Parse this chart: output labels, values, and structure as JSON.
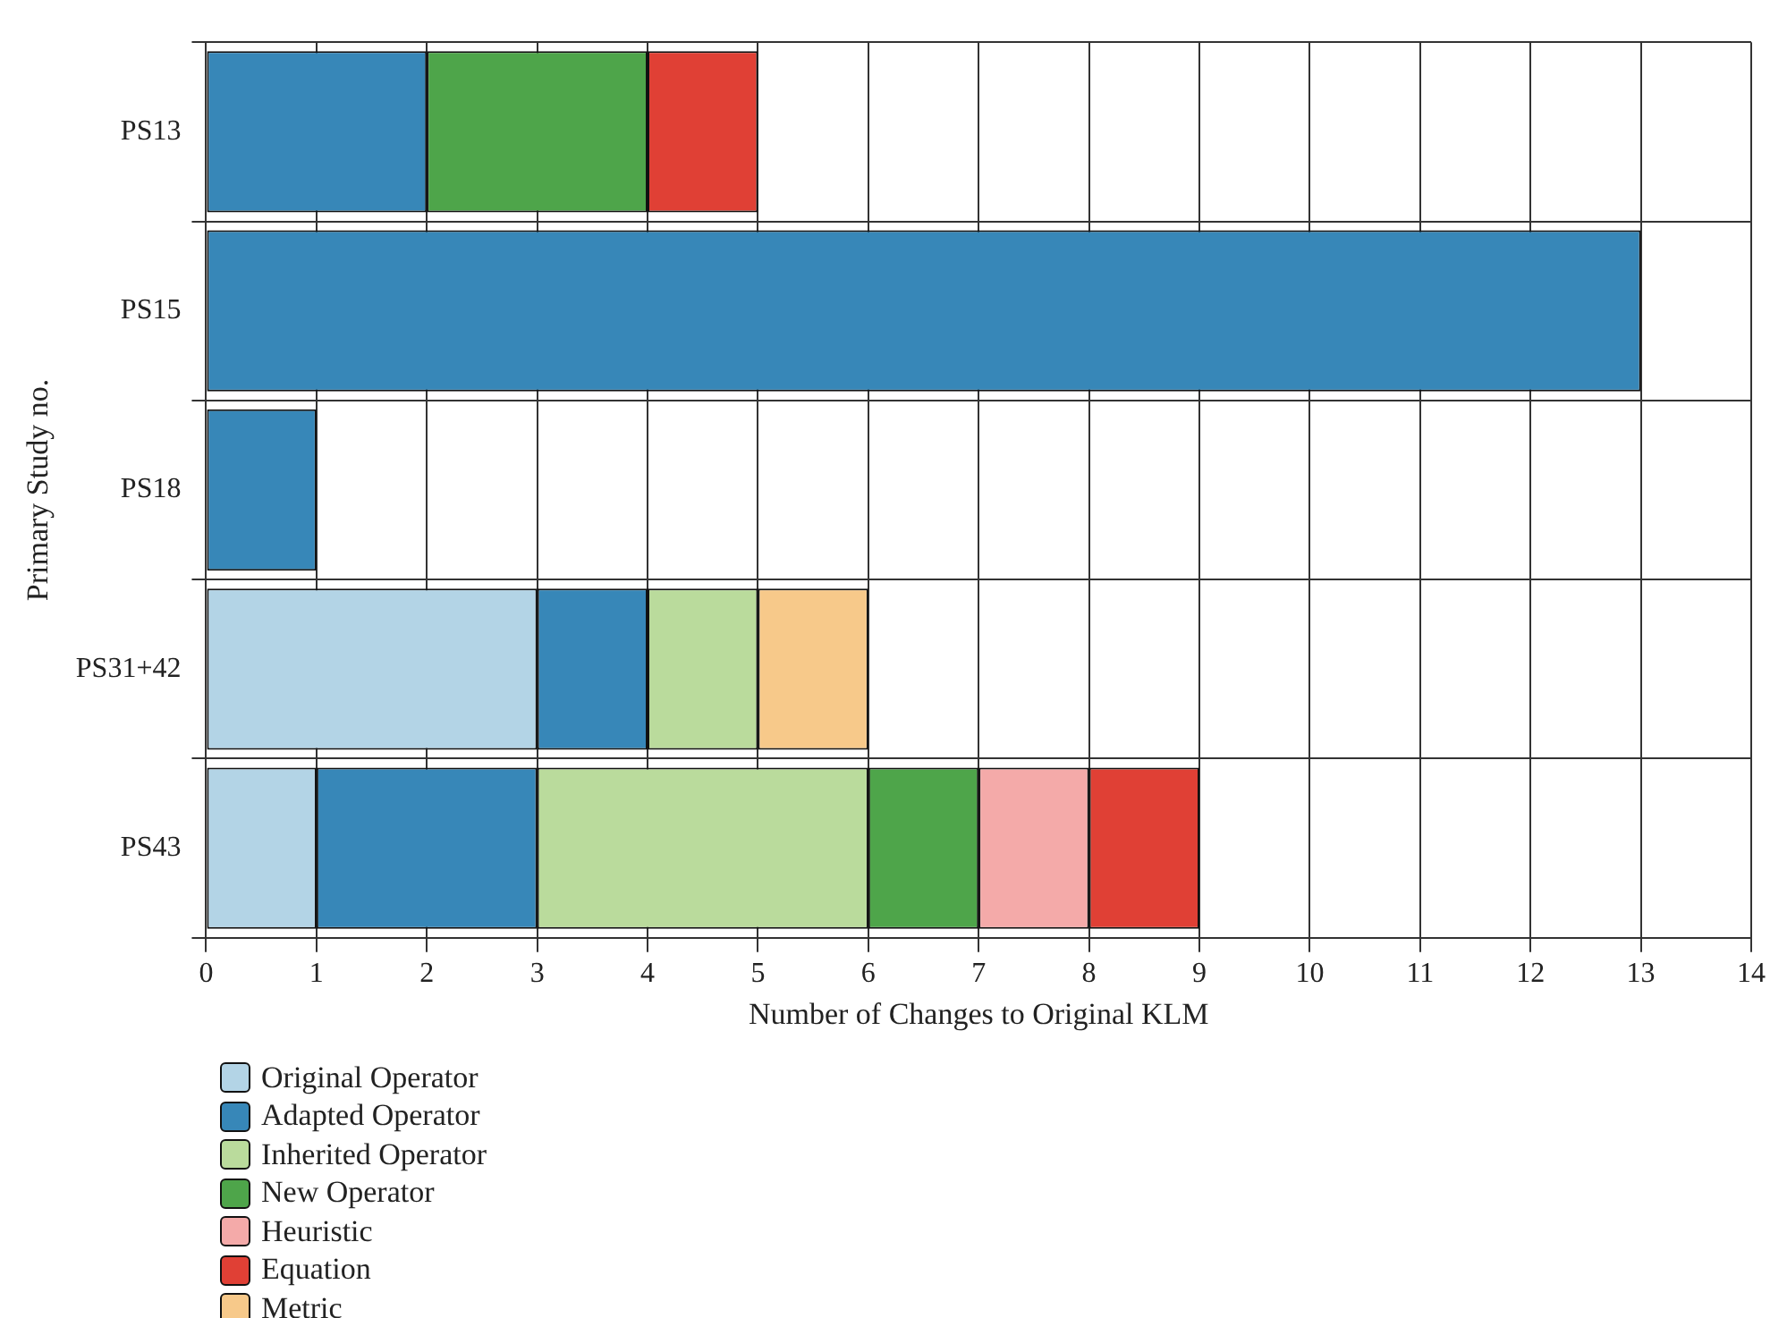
{
  "chart_data": {
    "type": "bar",
    "orientation": "horizontal",
    "stacked": true,
    "xlabel": "Number of Changes to Original KLM",
    "ylabel": "Primary Study no.",
    "categories": [
      "PS13",
      "PS15",
      "PS18",
      "PS31+42",
      "PS43"
    ],
    "series": [
      {
        "name": "Original Operator",
        "color": "#b3d4e6",
        "values": [
          null,
          null,
          null,
          3,
          1
        ]
      },
      {
        "name": "Adapted Operator",
        "color": "#3787b8",
        "values": [
          2,
          13,
          1,
          1,
          2
        ]
      },
      {
        "name": "Inherited Operator",
        "color": "#badb9c",
        "values": [
          null,
          null,
          null,
          1,
          3
        ]
      },
      {
        "name": "New Operator",
        "color": "#4ea54a",
        "values": [
          2,
          null,
          null,
          null,
          1
        ]
      },
      {
        "name": "Heuristic",
        "color": "#f4aaa9",
        "values": [
          null,
          null,
          null,
          null,
          1
        ]
      },
      {
        "name": "Equation",
        "color": "#e04035",
        "values": [
          1,
          null,
          null,
          null,
          1
        ]
      },
      {
        "name": "Metric",
        "color": "#f7c98a",
        "values": [
          null,
          null,
          null,
          1,
          null
        ]
      }
    ],
    "xlim": [
      0,
      14
    ],
    "xticks": [
      0,
      1,
      2,
      3,
      4,
      5,
      6,
      7,
      8,
      9,
      10,
      11,
      12,
      13,
      14
    ],
    "grid": true,
    "legend": "bottom"
  }
}
